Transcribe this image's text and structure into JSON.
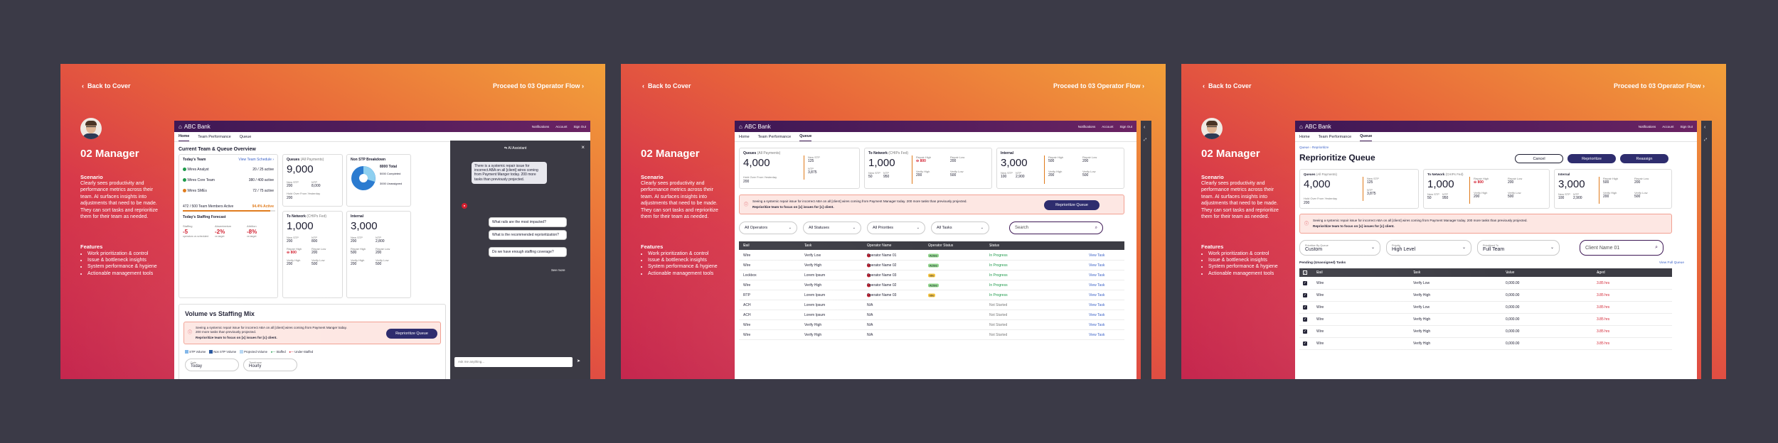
{
  "common": {
    "back": "Back to Cover",
    "proceed": "Proceed to 03 Operator Flow",
    "role": "02 Manager",
    "scenario_h": "Scenario",
    "scenario": "Clearly sees productivity and performance metrics across their team. AI surfaces insights into adjustments that need to be made. They can sort tasks and reprioritize them for their team as needed.",
    "features_h": "Features",
    "features": [
      "Work prioritization & control",
      "Issue & bottleneck insights",
      "System performance & hygiene",
      "Actionable management tools"
    ],
    "bank": "ABC Bank",
    "header_links": [
      "Notifications",
      "Account",
      "Sign Out"
    ],
    "nav": [
      "Home",
      "Team Performance",
      "Queue"
    ]
  },
  "s1": {
    "title": "Current Team & Queue Overview",
    "today": {
      "h": "Today's Team",
      "link": "View Team Schedule ›",
      "rows": [
        {
          "name": "Wires Analyst",
          "val": "20 / 25 active",
          "color": "#1d9a4a"
        },
        {
          "name": "Wires Core Team",
          "val": "380 / 400 active",
          "color": "#1d9a4a"
        },
        {
          "name": "Wires SMEs",
          "val": "72 / 75 active",
          "color": "#e07a1a"
        }
      ],
      "members": "472 / 500 Team Members Active",
      "pct": "94.4% Active",
      "staff_h": "Today's Staffing Forecast",
      "staff": [
        {
          "l": "Staffing",
          "v": "-5",
          "s": "operators vs scheduled"
        },
        {
          "l": "Absenteeism",
          "v": "-2%",
          "s": "vs target"
        },
        {
          "l": "Attrition",
          "v": "-8%",
          "s": "vs target"
        }
      ]
    },
    "queues": {
      "h": "Queues",
      "sub": "(All Payments)",
      "big": "9,000",
      "l1": "New STP",
      "v1": "200",
      "l2": "NTP",
      "v2": "8,000",
      "l3": "Hold Over From Yesterday",
      "v3": "200"
    },
    "nonstp": {
      "h": "Non STP Breakdown",
      "total": "8000 Total",
      "a": "5000 Completed",
      "b": "3000 Unassigned"
    },
    "tonetwork": {
      "h": "To Network",
      "sub": "(CHIPs Fed)",
      "big": "1,000",
      "l1": "New STP",
      "v1": "200",
      "l2": "NTP",
      "v2": "800",
      "l3": "Repair High",
      "v3": "800",
      "l4": "Repair Low",
      "v4": "200",
      "l5": "Verify High",
      "v5": "200",
      "l6": "Verify Low",
      "v6": "500"
    },
    "internal": {
      "h": "Internal",
      "big": "3,000",
      "l1": "New STP",
      "v1": "200",
      "l2": "NTP",
      "v2": "2,800",
      "l3": "Repair High",
      "v3": "500",
      "l4": "Repair Low",
      "v4": "200",
      "l5": "Verify High",
      "v5": "200",
      "l6": "Verify Low",
      "v6": "500"
    },
    "volume": {
      "h": "Volume vs Staffing Mix",
      "alert": "Seeing a systemic repair issue for incorrect ABA on all [client] wires coming from Payment Manger today. 200 more tasks than previously projected.",
      "alert_b": "Reprioritize team to focus on [x] issues for [c] client.",
      "btn": "Reprioritize Queue",
      "legend": [
        "STP Volume",
        "Non STP Volume",
        "Projected Volume",
        "Staffed",
        "Under-Staffed"
      ],
      "f1l": "Date",
      "f1v": "Today",
      "f2l": "Timeframe",
      "f2v": "Hourly"
    },
    "chat": {
      "h": "AI Assistant",
      "msg": "There is a systemic repair issue for incorrect ABA on all [client] wires coming from Payment Manger today. 200 more tasks than previously projected.",
      "opts": [
        "What rails are the most impacted?",
        "What is the recommended reprioritization?",
        "Do we have enough staffing coverage?"
      ],
      "more": "See more",
      "placeholder": "Ask me anything..."
    }
  },
  "s2": {
    "queues": {
      "h": "Queues",
      "sub": "(All Payments)",
      "big": "4,000",
      "l1": "New STP",
      "v1": "125",
      "l2": "NTP",
      "v2": "3,875",
      "l3": "Hold Over From Yesterday",
      "v3": "200"
    },
    "tonetwork": {
      "h": "To Network",
      "sub": "(CHIPs Fed)",
      "big": "1,000",
      "l1": "New STP",
      "v1": "50",
      "l2": "NTP",
      "v2": "950",
      "l3": "Repair High",
      "v3": "800",
      "l4": "Repair Low",
      "v4": "200",
      "l5": "Verify High",
      "v5": "200",
      "l6": "Verify Low",
      "v6": "500"
    },
    "internal": {
      "h": "Internal",
      "big": "3,000",
      "l1": "New STP",
      "v1": "100",
      "l2": "NTP",
      "v2": "2,900",
      "l3": "Repair High",
      "v3": "500",
      "l4": "Repair Low",
      "v4": "200",
      "l5": "Verify High",
      "v5": "200",
      "l6": "Verify Low",
      "v6": "500"
    },
    "alert": "Seeing a systemic repair issue for incorrect ABA on all [client] wires coming from Payment Manager today. 200 more tasks than previously projected.",
    "alert_b": "Reprioritize team to focus on [x] issues for [c] client.",
    "btn": "Reprioritize Queue",
    "filters": [
      "All Operators",
      "All Statuses",
      "All Priorities",
      "All Tasks"
    ],
    "search": "Search",
    "cols": [
      "Rail",
      "Task",
      "Operator Name",
      "Operator Status",
      "Status"
    ],
    "rows": [
      {
        "rail": "Wire",
        "task": "Verify Low",
        "op": "Operator Name 01",
        "ops": "Active",
        "st": "In Progress",
        "view": "View Task"
      },
      {
        "rail": "Wire",
        "task": "Verify High",
        "op": "Operator Name 02",
        "ops": "Active",
        "st": "In Progress",
        "view": "View Task"
      },
      {
        "rail": "Lockbox",
        "task": "Lorem Ipsum",
        "op": "Operator Name 03",
        "ops": "Idle",
        "st": "In Progress",
        "view": "View Task"
      },
      {
        "rail": "Wire",
        "task": "Verify High",
        "op": "Operator Name 02",
        "ops": "Active",
        "st": "In Progress",
        "view": "View Task"
      },
      {
        "rail": "RTP",
        "task": "Lorem Ipsum",
        "op": "Operator Name 03",
        "ops": "Idle",
        "st": "In Progress",
        "view": "View Task"
      },
      {
        "rail": "ACH",
        "task": "Lorem Ipsum",
        "op": "N/A",
        "ops": "",
        "st": "Not Started",
        "view": "View Task"
      },
      {
        "rail": "ACH",
        "task": "Lorem Ipsum",
        "op": "N/A",
        "ops": "",
        "st": "Not Started",
        "view": "View Task"
      },
      {
        "rail": "Wire",
        "task": "Verify High",
        "op": "N/A",
        "ops": "",
        "st": "Not Started",
        "view": "View Task"
      },
      {
        "rail": "Wire",
        "task": "Verify High",
        "op": "N/A",
        "ops": "",
        "st": "Not Started",
        "view": "View Task"
      }
    ]
  },
  "s3": {
    "crumb1": "Queue",
    "crumb2": "Reprioritize",
    "title": "Reprioritize Queue",
    "cancel": "Cancel",
    "repri": "Reprioritize",
    "reassign": "Reassign",
    "queues": {
      "h": "Queues",
      "sub": "(All Payments)",
      "big": "4,000",
      "l1": "New STP",
      "v1": "125",
      "l2": "NTP",
      "v2": "3,875",
      "l3": "Hold Over From Yesterday",
      "v3": "200"
    },
    "tonetwork": {
      "h": "To Network",
      "sub": "(CHIPs Fed)",
      "big": "1,000",
      "l1": "New STP",
      "v1": "50",
      "l2": "NTP",
      "v2": "950",
      "l3": "Repair High",
      "v3": "800",
      "l4": "Repair Low",
      "v4": "200",
      "l5": "Verify High",
      "v5": "200",
      "l6": "Verify Low",
      "v6": "500"
    },
    "internal": {
      "h": "Internal",
      "big": "3,000",
      "l1": "New STP",
      "v1": "100",
      "l2": "NTP",
      "v2": "2,900",
      "l3": "Repair High",
      "v3": "500",
      "l4": "Repair Low",
      "v4": "200",
      "l5": "Verify High",
      "v5": "200",
      "l6": "Verify Low",
      "v6": "500"
    },
    "alert": "Seeing a systemic repair issue for incorrect ABA on all [client] wires coming from Payment Manager today. 200 more tasks than previously projected.",
    "alert_b": "Reprioritize team to focus on [x] issues for [c] client.",
    "f1l": "Prioritize By Queue",
    "f1v": "Custom",
    "f2l": "Priority",
    "f2v": "High Level",
    "f3l": "Prioritized To",
    "f3v": "Full Team",
    "search": "Client Name 01",
    "pending": "Pending (Unassigned) Tasks",
    "viewfull": "View Full Queue",
    "cols": [
      "Rail",
      "Task",
      "Value",
      "Aged"
    ],
    "rows": [
      {
        "rail": "Wire",
        "task": "Verify Low",
        "val": "0,000.00",
        "aged": "3.85 hrs"
      },
      {
        "rail": "Wire",
        "task": "Verify High",
        "val": "0,000.00",
        "aged": "3.85 hrs"
      },
      {
        "rail": "Wire",
        "task": "Verify Low",
        "val": "0,000.00",
        "aged": "3.85 hrs"
      },
      {
        "rail": "Wire",
        "task": "Verify High",
        "val": "0,000.00",
        "aged": "3.85 hrs"
      },
      {
        "rail": "Wire",
        "task": "Verify High",
        "val": "0,000.00",
        "aged": "3.85 hrs"
      },
      {
        "rail": "Wire",
        "task": "Verify High",
        "val": "0,000.00",
        "aged": "3.85 hrs"
      }
    ]
  }
}
